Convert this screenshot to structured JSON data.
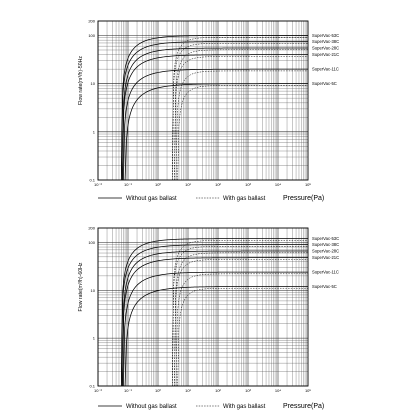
{
  "chart_data": [
    {
      "type": "line",
      "ylabel": "Flow rate(m³/h)-50Hz",
      "xlabel": "Pressure(Pa)",
      "x_scale": "log",
      "y_scale": "log",
      "xlim": [
        0.01,
        100000
      ],
      "ylim": [
        0.1,
        200
      ],
      "x_ticks": [
        {
          "value": 0.01,
          "label": "10⁻²"
        },
        {
          "value": 0.1,
          "label": "10⁻¹"
        },
        {
          "value": 1,
          "label": "10⁰"
        },
        {
          "value": 10,
          "label": "10¹"
        },
        {
          "value": 100,
          "label": "10²"
        },
        {
          "value": 1000,
          "label": "10³"
        },
        {
          "value": 10000,
          "label": "10⁴"
        },
        {
          "value": 100000,
          "label": "10⁵"
        }
      ],
      "y_ticks": [
        {
          "value": 200,
          "label": "200"
        },
        {
          "value": 100,
          "label": "100"
        },
        {
          "value": 10,
          "label": "10"
        },
        {
          "value": 1,
          "label": "1"
        },
        {
          "value": 0.1,
          "label": "0.1"
        }
      ],
      "legend": [
        {
          "label": "Without gas ballast",
          "style": "solid"
        },
        {
          "label": "With gas ballast",
          "style": "dashed"
        }
      ],
      "series": [
        {
          "name": "SuperVac-53C",
          "plateau": 100,
          "onset": 0.06,
          "k": 0.9,
          "ballast_onset": 3
        },
        {
          "name": "SuperVac-38C",
          "plateau": 75,
          "onset": 0.06,
          "k": 0.85,
          "ballast_onset": 3
        },
        {
          "name": "SuperVac-28C",
          "plateau": 55,
          "onset": 0.065,
          "k": 0.85,
          "ballast_onset": 3.5
        },
        {
          "name": "SuperVac-21C",
          "plateau": 40,
          "onset": 0.065,
          "k": 0.8,
          "ballast_onset": 3.5
        },
        {
          "name": "SuperVac-11C",
          "plateau": 20,
          "onset": 0.07,
          "k": 0.8,
          "ballast_onset": 4
        },
        {
          "name": "SuperVac-5C",
          "plateau": 10,
          "onset": 0.08,
          "k": 0.75,
          "ballast_onset": 4.5
        }
      ]
    },
    {
      "type": "line",
      "ylabel": "Flow rate(m³/h)-60Hz",
      "xlabel": "Pressure(Pa)",
      "x_scale": "log",
      "y_scale": "log",
      "xlim": [
        0.01,
        100000
      ],
      "ylim": [
        0.1,
        200
      ],
      "x_ticks": [
        {
          "value": 0.01,
          "label": "10⁻²"
        },
        {
          "value": 0.1,
          "label": "10⁻¹"
        },
        {
          "value": 1,
          "label": "10⁰"
        },
        {
          "value": 10,
          "label": "10¹"
        },
        {
          "value": 100,
          "label": "10²"
        },
        {
          "value": 1000,
          "label": "10³"
        },
        {
          "value": 10000,
          "label": "10⁴"
        },
        {
          "value": 100000,
          "label": "10⁵"
        }
      ],
      "y_ticks": [
        {
          "value": 200,
          "label": "200"
        },
        {
          "value": 100,
          "label": "100"
        },
        {
          "value": 10,
          "label": "10"
        },
        {
          "value": 1,
          "label": "1"
        },
        {
          "value": 0.1,
          "label": "0.1"
        }
      ],
      "legend": [
        {
          "label": "Without gas ballast",
          "style": "solid"
        },
        {
          "label": "With gas ballast",
          "style": "dashed"
        }
      ],
      "series": [
        {
          "name": "SuperVac-53C",
          "plateau": 120,
          "onset": 0.06,
          "k": 0.9,
          "ballast_onset": 3
        },
        {
          "name": "SuperVac-38C",
          "plateau": 90,
          "onset": 0.06,
          "k": 0.85,
          "ballast_onset": 3
        },
        {
          "name": "SuperVac-28C",
          "plateau": 66,
          "onset": 0.065,
          "k": 0.85,
          "ballast_onset": 3.5
        },
        {
          "name": "SuperVac-21C",
          "plateau": 48,
          "onset": 0.065,
          "k": 0.8,
          "ballast_onset": 3.5
        },
        {
          "name": "SuperVac-11C",
          "plateau": 24,
          "onset": 0.07,
          "k": 0.8,
          "ballast_onset": 4
        },
        {
          "name": "SuperVac-5C",
          "plateau": 12,
          "onset": 0.08,
          "k": 0.75,
          "ballast_onset": 4.5
        }
      ]
    }
  ]
}
